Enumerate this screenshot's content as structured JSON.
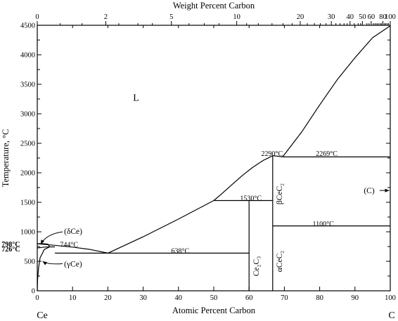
{
  "chart_data": {
    "type": "line",
    "x_axis": {
      "label": "Atomic Percent Carbon",
      "range": [
        0,
        100
      ],
      "ticks": [
        0,
        10,
        20,
        30,
        40,
        50,
        60,
        70,
        80,
        90,
        100
      ],
      "tick_labels": [
        "0",
        "10",
        "20",
        "30",
        "40",
        "50",
        "60",
        "70",
        "80",
        "90",
        "100"
      ]
    },
    "top_axis": {
      "label": "Weight Percent Carbon",
      "labeled_ticks": [
        {
          "label": "0",
          "at_atomic_pct": 0
        },
        {
          "label": "2",
          "at_atomic_pct": 19.4
        },
        {
          "label": "5",
          "at_atomic_pct": 38.0
        },
        {
          "label": "10",
          "at_atomic_pct": 56.5
        },
        {
          "label": "20",
          "at_atomic_pct": 74.5
        },
        {
          "label": "30",
          "at_atomic_pct": 83.3
        },
        {
          "label": "40",
          "at_atomic_pct": 88.6
        },
        {
          "label": "50",
          "at_atomic_pct": 92.1
        },
        {
          "label": "60",
          "at_atomic_pct": 94.6
        },
        {
          "label": "80",
          "at_atomic_pct": 97.9
        },
        {
          "label": "100",
          "at_atomic_pct": 100
        }
      ],
      "minor_ticks_atomic_pct": [
        6.5,
        12.7,
        23.1,
        28.5,
        32.6,
        43.0,
        47.3,
        51.5,
        59.3,
        62.6,
        66.5,
        69.6,
        72.2,
        76.5,
        78.5,
        80.2,
        81.8,
        84.6,
        85.8,
        86.9,
        87.8,
        89.8,
        90.9,
        91.6,
        93.4,
        94.0,
        95.2,
        95.7,
        96.2,
        96.6,
        97.1,
        97.5,
        98.3,
        98.7,
        99.1,
        99.5
      ]
    },
    "y_axis": {
      "label": "Temperature, °C",
      "range": [
        0,
        4500
      ],
      "ticks": [
        0,
        250,
        500,
        750,
        1000,
        1250,
        1500,
        1750,
        2000,
        2250,
        2500,
        2750,
        3000,
        3250,
        3500,
        3750,
        4000,
        4250,
        4500
      ],
      "tick_labels": [
        "0",
        "",
        "500",
        "",
        "1000",
        "",
        "1500",
        "",
        "2000",
        "",
        "2500",
        "",
        "3000",
        "",
        "3500",
        "",
        "4000",
        "",
        "4500"
      ]
    },
    "series": [
      {
        "values": [
          [
            0,
            798
          ],
          [
            5,
            770
          ],
          [
            10,
            740
          ],
          [
            15,
            700
          ],
          [
            20,
            638
          ]
        ]
      },
      {
        "values": [
          [
            20,
            638
          ],
          [
            30,
            915
          ],
          [
            40,
            1215
          ],
          [
            50,
            1530
          ]
        ]
      },
      {
        "values": [
          [
            50,
            1530
          ],
          [
            52,
            1630
          ],
          [
            55,
            1790
          ],
          [
            58,
            1950
          ],
          [
            61,
            2090
          ],
          [
            64,
            2210
          ],
          [
            66.7,
            2290
          ]
        ]
      },
      {
        "values": [
          [
            66.7,
            2290
          ],
          [
            68,
            2282
          ],
          [
            69.5,
            2269
          ]
        ]
      },
      {
        "values": [
          [
            69.5,
            2269
          ],
          [
            75,
            2700
          ],
          [
            80,
            3150
          ],
          [
            85,
            3580
          ],
          [
            90,
            3950
          ],
          [
            95,
            4290
          ],
          [
            100,
            4490
          ]
        ]
      },
      {
        "values": [
          [
            0,
            798
          ],
          [
            1.5,
            800
          ],
          [
            3,
            790
          ],
          [
            3.5,
            744
          ]
        ]
      },
      {
        "values": [
          [
            0,
            726
          ],
          [
            2,
            740
          ],
          [
            3.5,
            744
          ]
        ]
      },
      {
        "values": [
          [
            3.5,
            744
          ],
          [
            2,
            700
          ],
          [
            0.8,
            560
          ],
          [
            0.4,
            400
          ],
          [
            0.1,
            200
          ],
          [
            0,
            0
          ]
        ]
      },
      {
        "values": [
          [
            3.5,
            744
          ],
          [
            5,
            744
          ]
        ]
      },
      {
        "values": [
          [
            5,
            638
          ],
          [
            60,
            638
          ]
        ]
      },
      {
        "values": [
          [
            50,
            1530
          ],
          [
            66.7,
            1530
          ]
        ]
      },
      {
        "values": [
          [
            60,
            0
          ],
          [
            60,
            1530
          ]
        ]
      },
      {
        "values": [
          [
            66.7,
            0
          ],
          [
            66.7,
            2290
          ]
        ]
      },
      {
        "values": [
          [
            66.7,
            1100
          ],
          [
            100,
            1100
          ]
        ]
      },
      {
        "values": [
          [
            69.5,
            2269
          ],
          [
            100,
            2269
          ]
        ]
      }
    ],
    "annotations": [
      {
        "text": "L",
        "x": 28,
        "y": 3270
      },
      {
        "text": "2290°C",
        "x": 66.5,
        "y": 2335
      },
      {
        "text": "2269°C",
        "x": 82,
        "y": 2335
      },
      {
        "text": "1530°C",
        "x": 60.5,
        "y": 1575
      },
      {
        "text": "1100°C",
        "x": 81,
        "y": 1145
      },
      {
        "text": "744°C",
        "x": 9,
        "y": 790
      },
      {
        "text": "638°C",
        "x": 40.5,
        "y": 683
      },
      {
        "text": "798°C",
        "x": -7.5,
        "y": 798
      },
      {
        "text": "726°C",
        "x": -7.5,
        "y": 712
      },
      {
        "text": "(δCe)",
        "x": 7.6,
        "y": 1010
      },
      {
        "text": "(γCe)",
        "x": 7.6,
        "y": 460
      },
      {
        "text": "(C)",
        "x": 92.5,
        "y": 1700
      }
    ],
    "element_labels": [
      "Ce",
      "C"
    ],
    "phase_labels_vertical": [
      "βCeC₂",
      "αCeC₂",
      "Ce₂C₃"
    ]
  }
}
